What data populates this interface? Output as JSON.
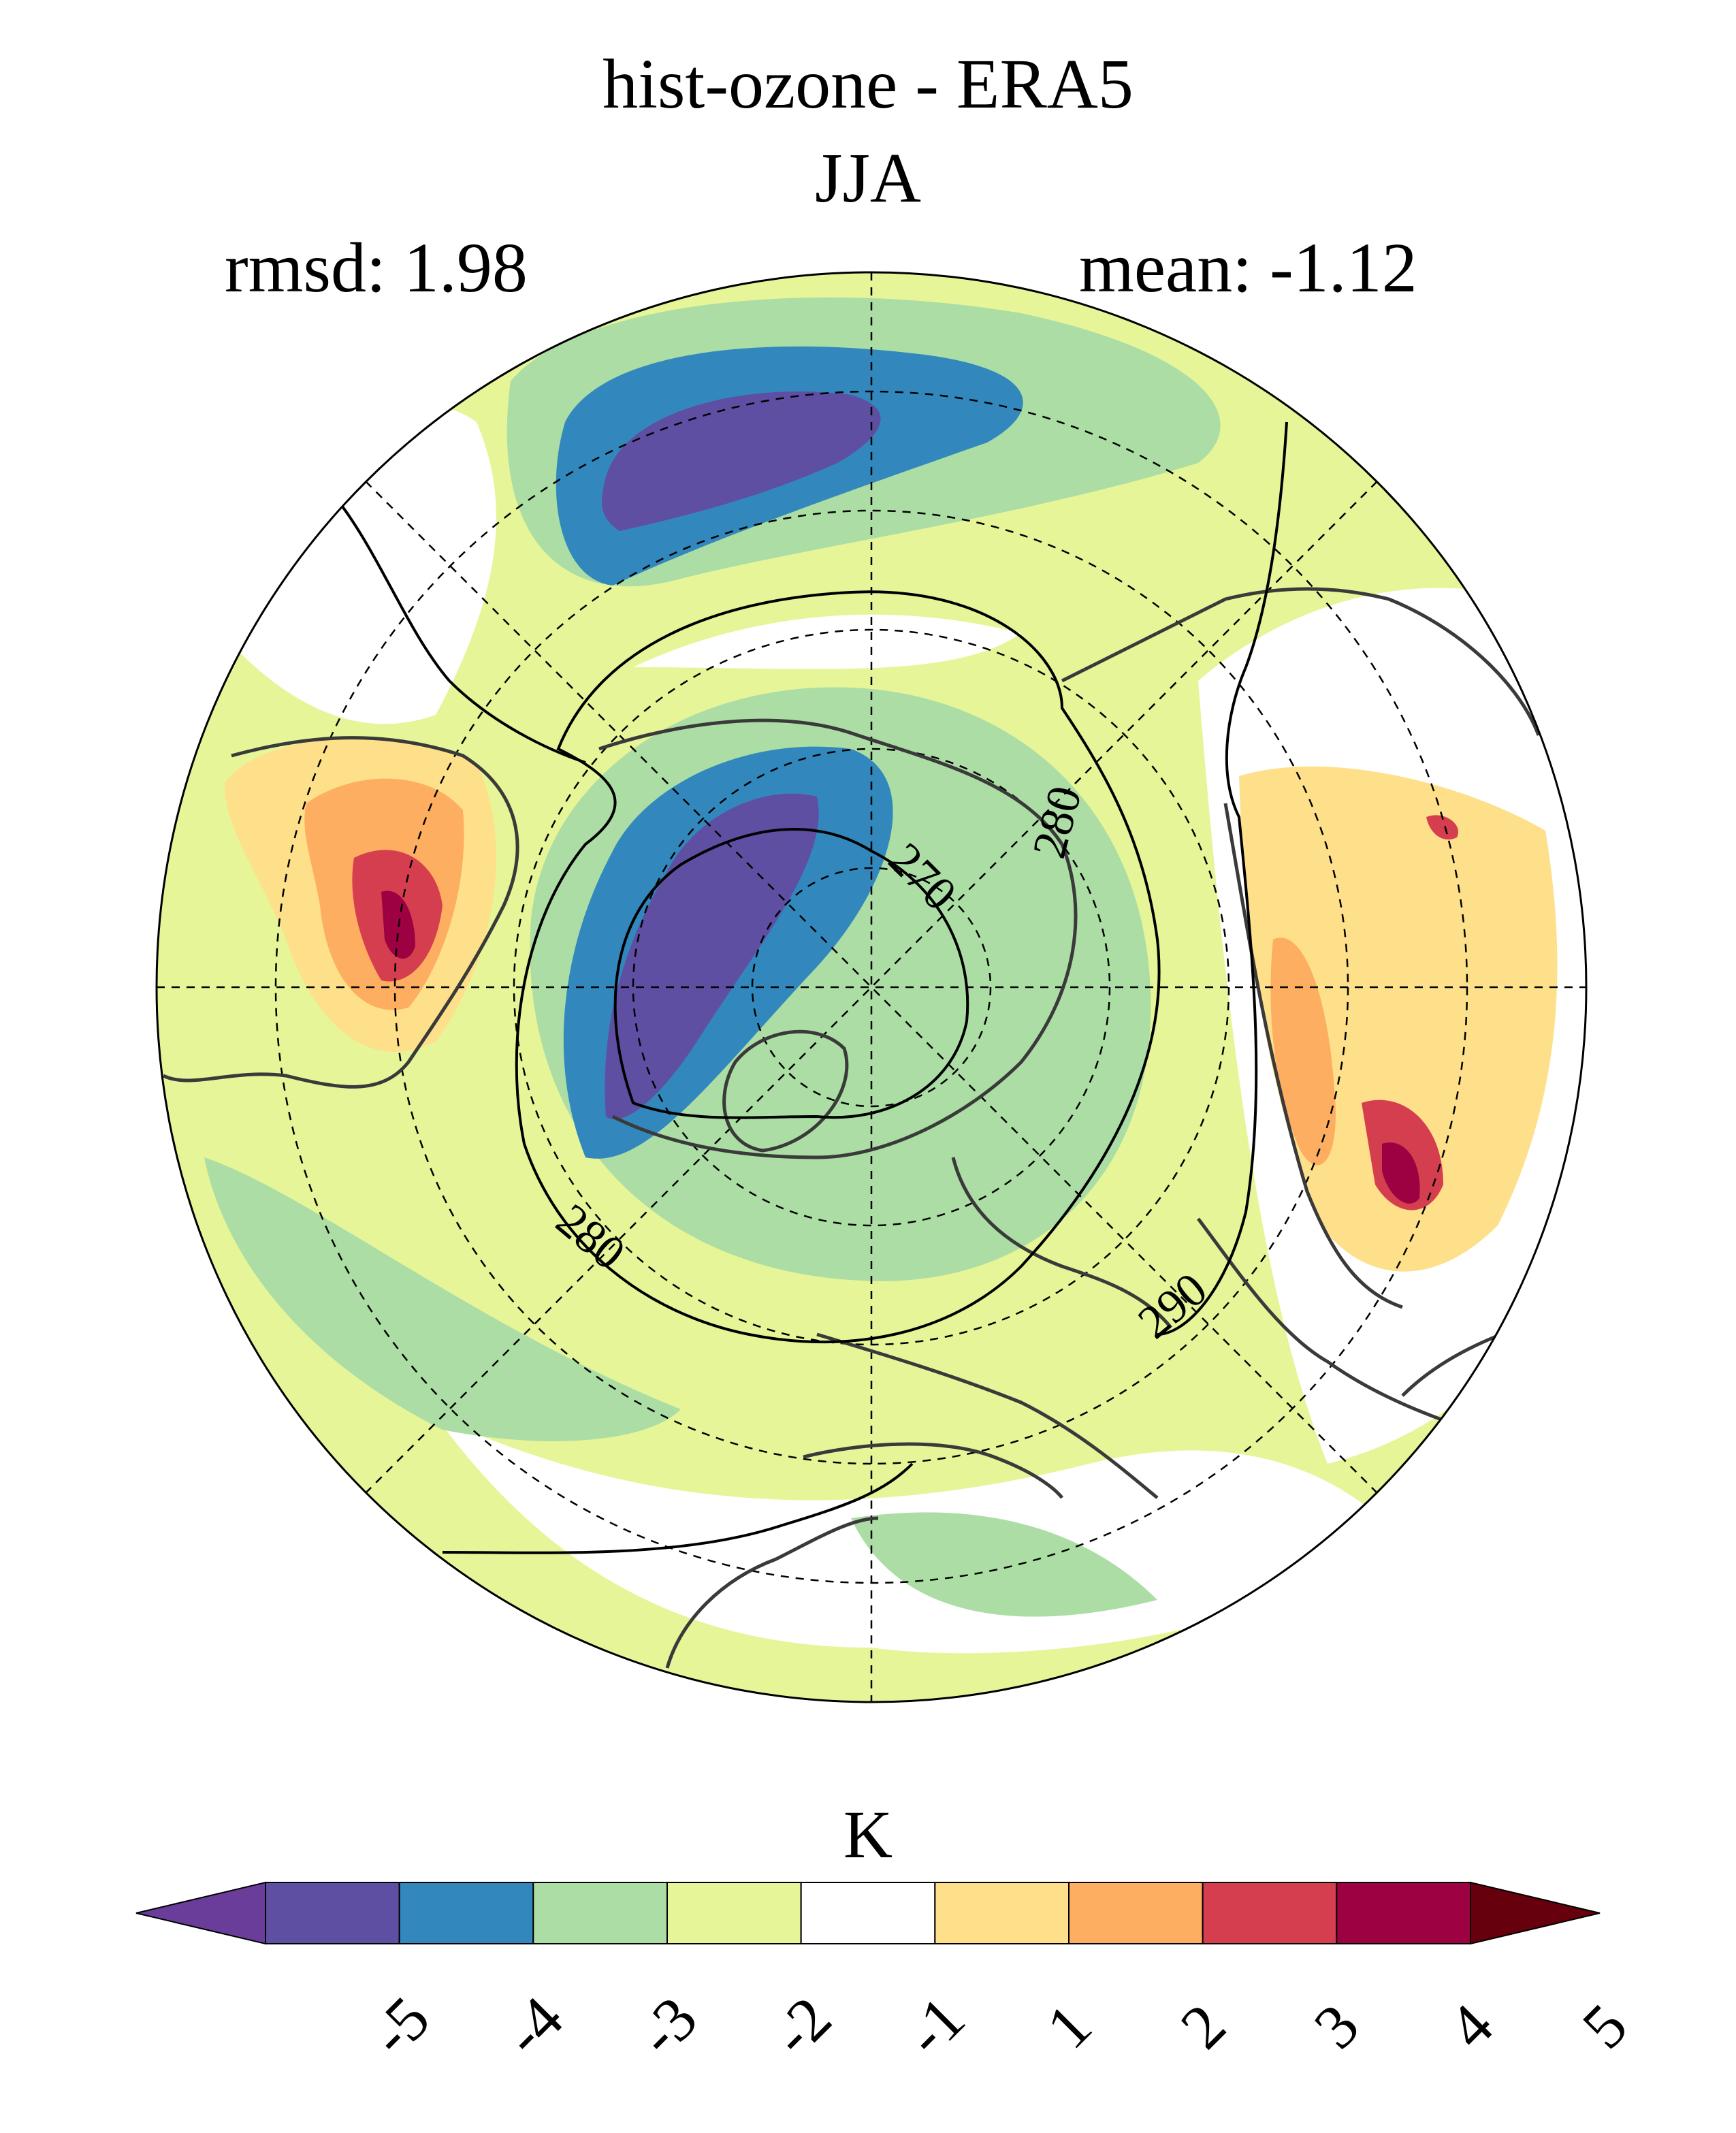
{
  "title": "hist-ozone - ERA5",
  "subtitle": "JJA",
  "rmsd_text": "rmsd: 1.98",
  "mean_text": "mean: -1.12",
  "colorbar": {
    "unit": "K",
    "levels": [
      "-5",
      "-4",
      "-3",
      "-2",
      "-1",
      "1",
      "2",
      "3",
      "4",
      "5"
    ],
    "colors": [
      "#6a3d9a",
      "#5e4fa2",
      "#3288bd",
      "#abdda4",
      "#e6f598",
      "#ffffff",
      "#fee08b",
      "#fdae61",
      "#d53e4f",
      "#9e0142",
      "#67000d"
    ]
  },
  "contour_labels": [
    "270",
    "280",
    "280",
    "290"
  ],
  "projection": "north-polar-stereographic"
}
